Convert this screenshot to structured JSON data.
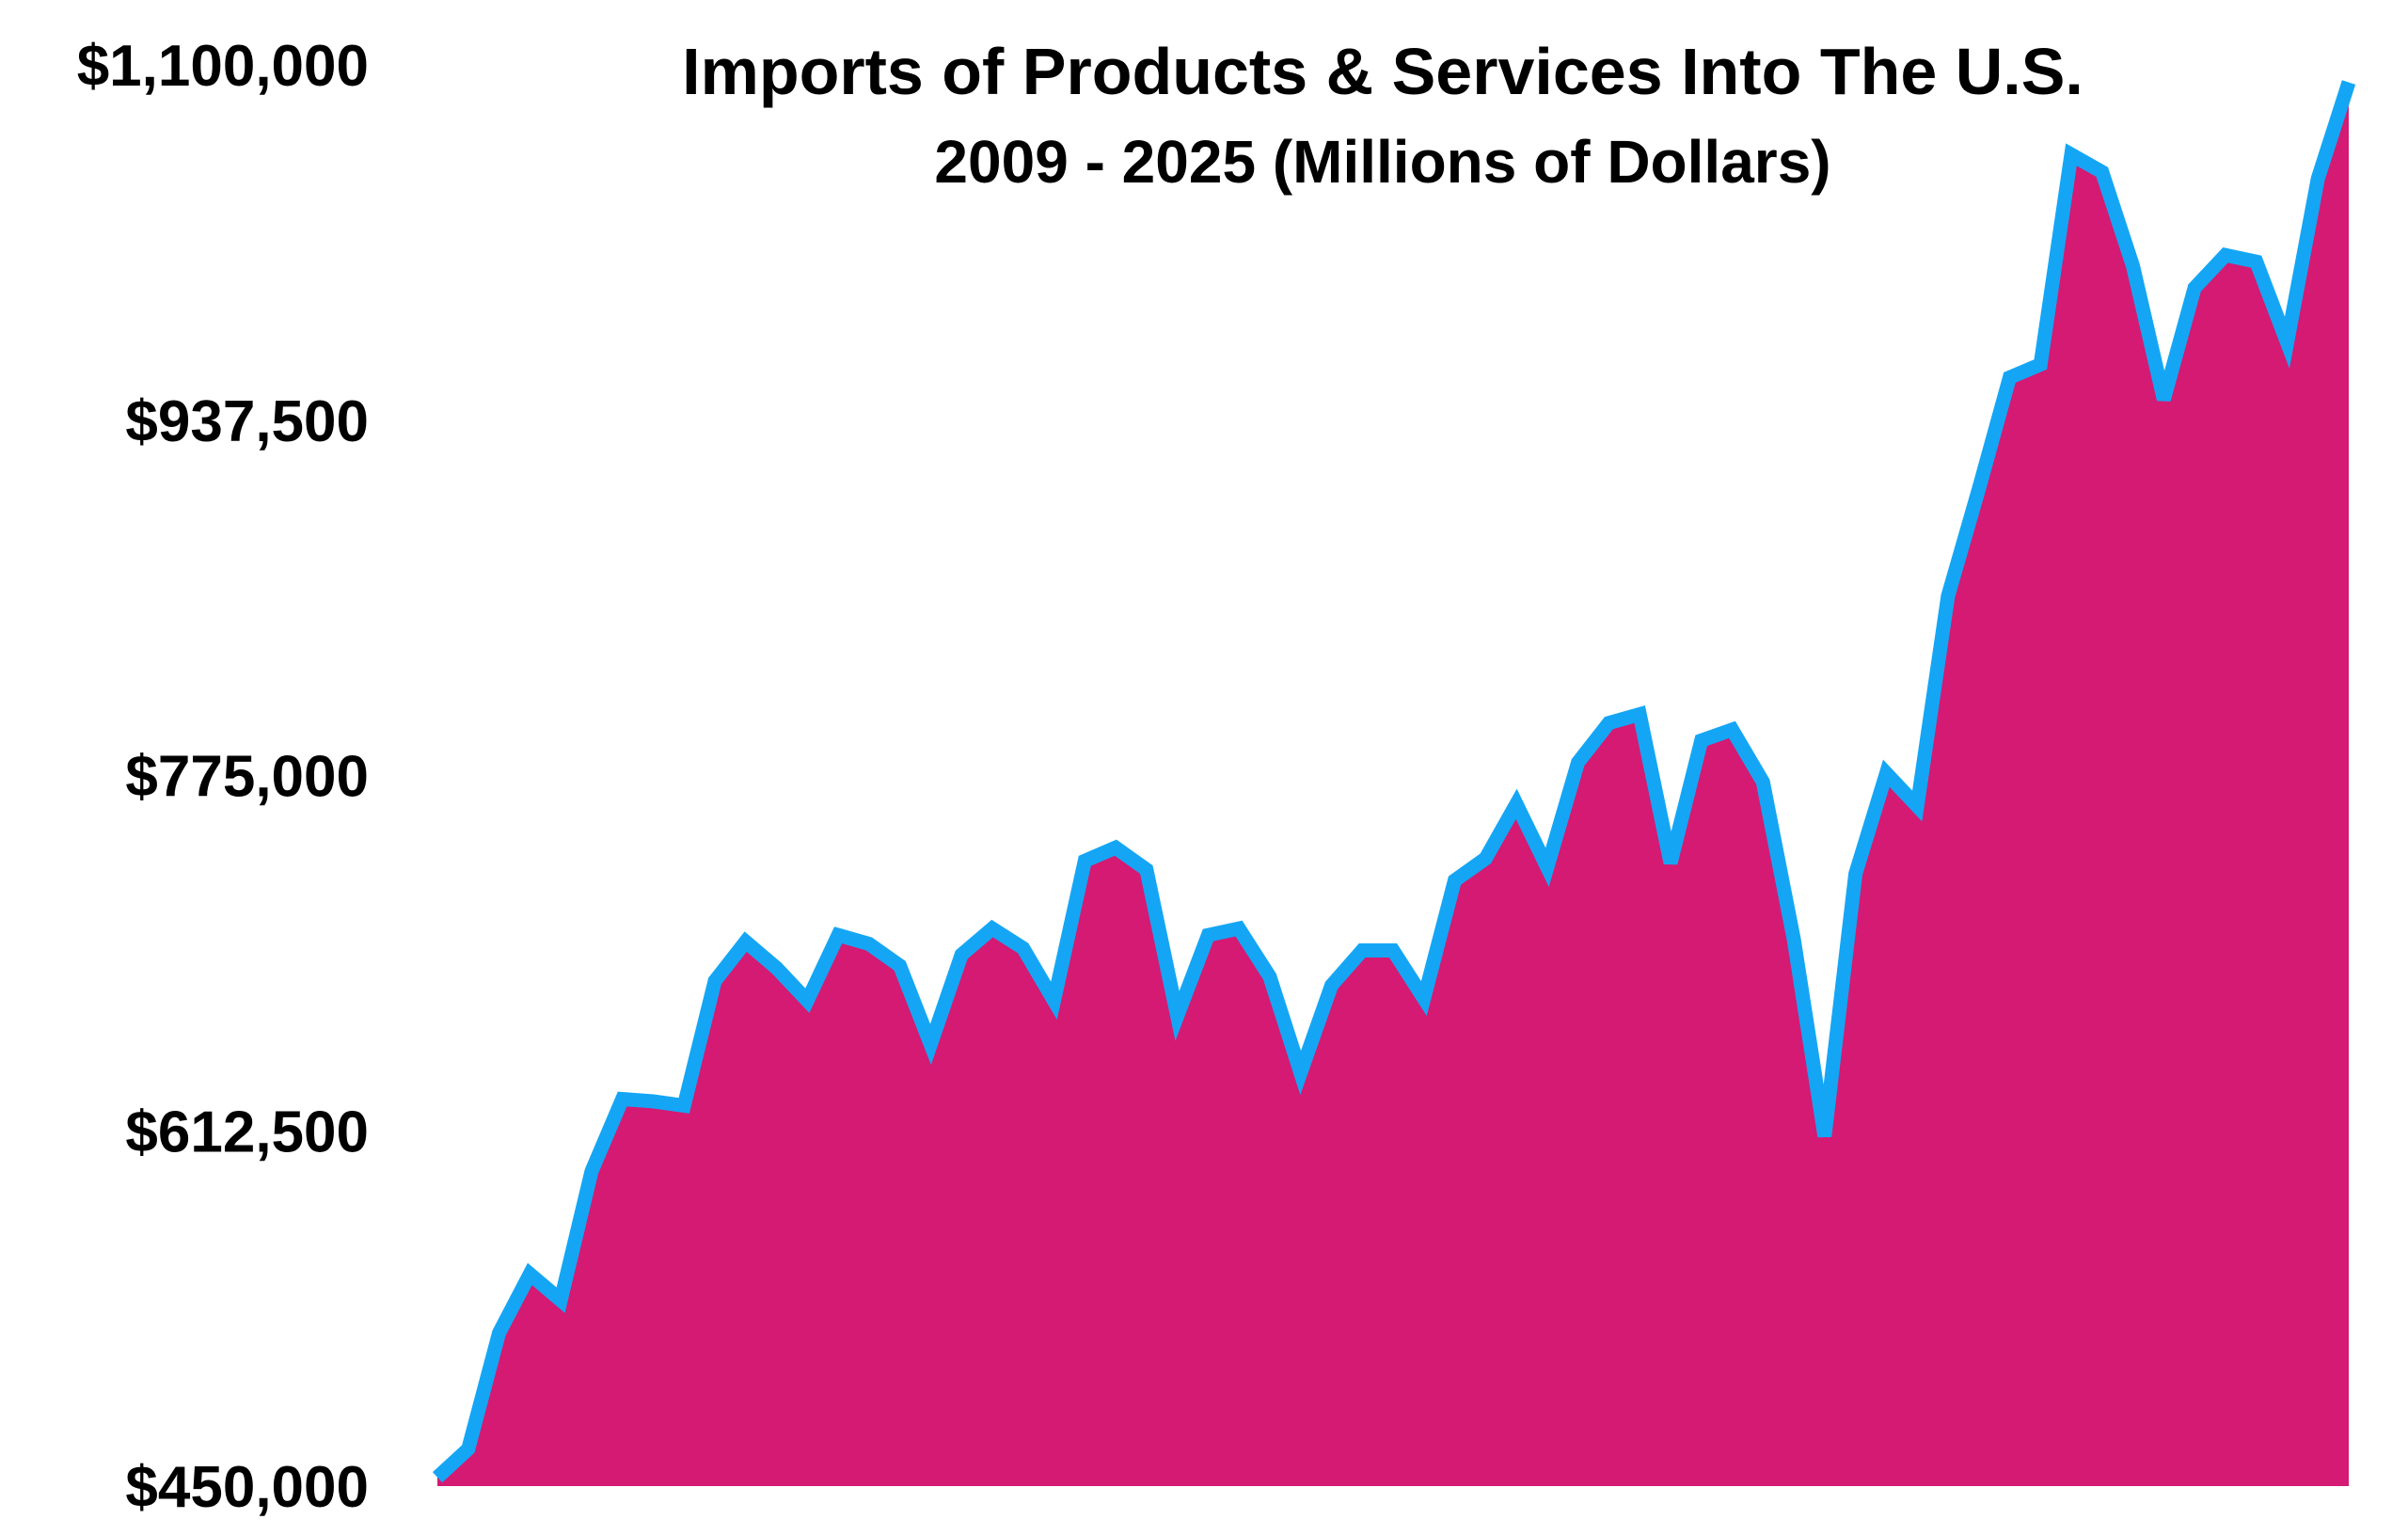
{
  "chart_data": {
    "type": "area",
    "title": "Imports of Products & Services Into The U.S.",
    "subtitle": "2009 - 2025 (Millions of Dollars)",
    "xlabel": "",
    "ylabel": "",
    "x_range": [
      2009,
      2025
    ],
    "ylim": [
      450000,
      1100000
    ],
    "y_tick_labels": [
      "$1,100,000",
      "$937,500",
      "$775,000",
      "$612,500",
      "$450,000"
    ],
    "grid": false,
    "legend": "none",
    "colors": {
      "fill": "#D41A72",
      "line": "#14A6F5",
      "text": "#000000",
      "background": "#FFFFFF"
    },
    "series": [
      {
        "values": [
          454000,
          467000,
          520000,
          547000,
          535000,
          594000,
          627000,
          626000,
          624000,
          681000,
          699000,
          687000,
          672000,
          702000,
          698000,
          688000,
          652000,
          693000,
          705000,
          696000,
          672000,
          736000,
          742000,
          732000,
          665000,
          702000,
          705000,
          683000,
          639000,
          679000,
          695000,
          695000,
          673000,
          727000,
          737000,
          762000,
          733000,
          781000,
          799000,
          803000,
          735000,
          791000,
          796000,
          772000,
          700000,
          610000,
          730000,
          776000,
          761000,
          857000,
          906000,
          957000,
          963000,
          1059000,
          1051000,
          1008000,
          947000,
          998000,
          1013000,
          1010000,
          973000,
          1048000,
          1092000
        ]
      }
    ]
  }
}
